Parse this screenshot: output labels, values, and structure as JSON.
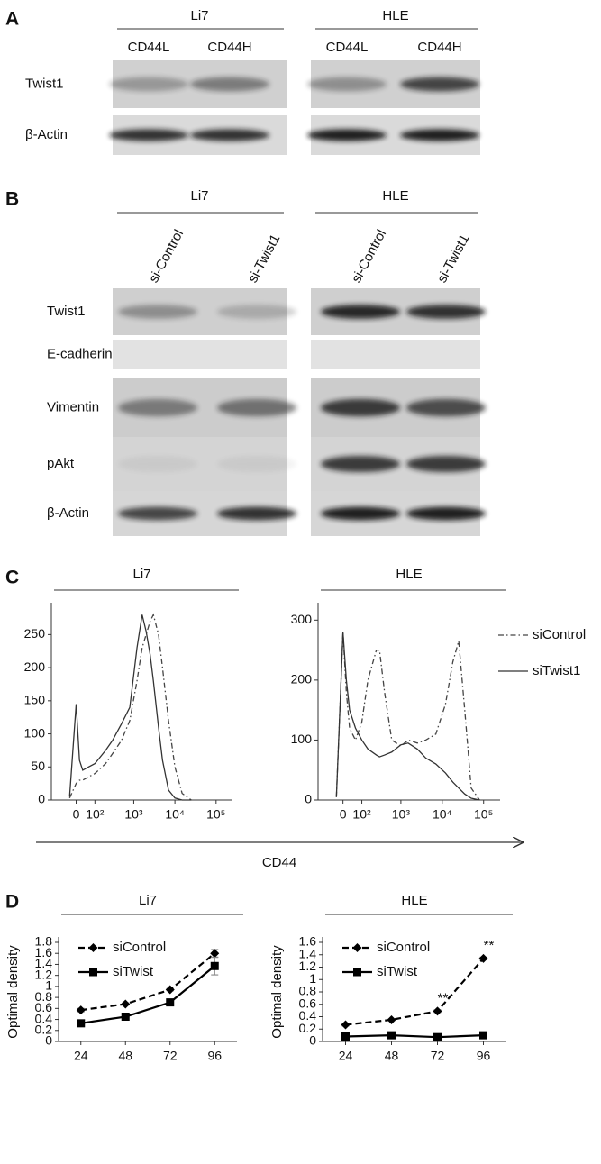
{
  "panel_a": {
    "label": "A",
    "groups": [
      {
        "name": "Li7",
        "lanes": [
          "CD44L",
          "CD44H"
        ]
      },
      {
        "name": "HLE",
        "lanes": [
          "CD44L",
          "CD44H"
        ]
      }
    ],
    "rows": [
      "Twist1",
      "β-Actin"
    ]
  },
  "panel_b": {
    "label": "B",
    "groups": [
      {
        "name": "Li7",
        "lanes": [
          "si-Control",
          "si-Twist1"
        ]
      },
      {
        "name": "HLE",
        "lanes": [
          "si-Control",
          "si-Twist1"
        ]
      }
    ],
    "rows": [
      "Twist1",
      "E-cadherin",
      "Vimentin",
      "pAkt",
      "β-Actin"
    ]
  },
  "panel_c": {
    "label": "C",
    "xlabel": "CD44"
  },
  "panel_d": {
    "label": "D"
  },
  "chart_data": [
    {
      "type": "line",
      "title": "Li7",
      "xscale": "biexponential",
      "x": [
        -30,
        0,
        15,
        30,
        60,
        100,
        200,
        300,
        500,
        800,
        1200,
        1600,
        2000,
        2500,
        3000,
        4000,
        5000,
        7000,
        10000,
        15000,
        25000
      ],
      "series": [
        {
          "color": "#444444",
          "dash": "dashdot",
          "values": [
            3,
            25,
            30,
            30,
            35,
            40,
            55,
            70,
            90,
            120,
            180,
            230,
            250,
            270,
            280,
            250,
            200,
            120,
            50,
            10,
            0
          ]
        },
        {
          "color": "#333333",
          "dash": "solid",
          "values": [
            5,
            145,
            60,
            45,
            50,
            55,
            75,
            90,
            115,
            140,
            230,
            280,
            255,
            220,
            180,
            110,
            60,
            15,
            3,
            0,
            0
          ]
        }
      ],
      "xlim": [
        -150,
        250000
      ],
      "xticks": [
        0,
        {
          "value": 100,
          "label": "10²"
        },
        {
          "value": 1000,
          "label": "10³"
        },
        {
          "value": 10000,
          "label": "10⁴"
        },
        {
          "value": 100000,
          "label": "10⁵"
        }
      ],
      "ylim": [
        0,
        290
      ],
      "yticks": [
        0,
        50,
        100,
        150,
        200,
        250
      ]
    },
    {
      "type": "line",
      "title": "HLE",
      "xscale": "biexponential",
      "legend": "outside right",
      "x": [
        -30,
        0,
        15,
        30,
        60,
        100,
        150,
        250,
        300,
        400,
        600,
        1000,
        1500,
        2500,
        4000,
        7000,
        12000,
        18000,
        25000,
        35000,
        50000,
        80000
      ],
      "series": [
        {
          "name": "siControl",
          "color": "#444444",
          "dash": "dashdot",
          "values": [
            5,
            280,
            180,
            120,
            100,
            130,
            200,
            250,
            250,
            180,
            100,
            90,
            100,
            95,
            100,
            110,
            160,
            230,
            265,
            150,
            20,
            0
          ]
        },
        {
          "name": "siTwist1",
          "color": "#333333",
          "dash": "solid",
          "values": [
            5,
            280,
            200,
            150,
            120,
            100,
            85,
            75,
            72,
            75,
            80,
            92,
            95,
            85,
            70,
            60,
            45,
            30,
            20,
            10,
            3,
            0
          ]
        }
      ],
      "xlim": [
        -150,
        250000
      ],
      "xticks": [
        0,
        {
          "value": 100,
          "label": "10²"
        },
        {
          "value": 1000,
          "label": "10³"
        },
        {
          "value": 10000,
          "label": "10⁴"
        },
        {
          "value": 100000,
          "label": "10⁵"
        }
      ],
      "ylim": [
        0,
        320
      ],
      "yticks": [
        0,
        100,
        200,
        300
      ]
    },
    {
      "type": "line",
      "title": "Li7",
      "ylabel": "Optimal density",
      "legend": "upper left",
      "x": [
        24,
        48,
        72,
        96
      ],
      "series": [
        {
          "name": "siControl",
          "color": "#000000",
          "dash": "dashed",
          "marker": "diamond",
          "values": [
            0.57,
            0.68,
            0.94,
            1.6
          ],
          "error": [
            0.03,
            0.02,
            0.02,
            0.07
          ]
        },
        {
          "name": "siTwist",
          "color": "#000000",
          "dash": "solid",
          "marker": "square",
          "values": [
            0.33,
            0.45,
            0.71,
            1.37
          ],
          "error": [
            0.02,
            0.05,
            0.04,
            0.16
          ]
        }
      ],
      "xlim": [
        12,
        108
      ],
      "xticks": [
        24,
        48,
        72,
        96
      ],
      "ylim": [
        0,
        1.8
      ],
      "yticks": [
        0,
        0.2,
        0.4,
        0.6,
        0.8,
        1,
        1.2,
        1.4,
        1.6,
        1.8
      ]
    },
    {
      "type": "line",
      "title": "HLE",
      "ylabel": "Optimal density",
      "legend": "upper left",
      "x": [
        24,
        48,
        72,
        96
      ],
      "series": [
        {
          "name": "siControl",
          "color": "#000000",
          "dash": "dashed",
          "marker": "diamond",
          "values": [
            0.27,
            0.35,
            0.49,
            1.34
          ],
          "error": [
            0.02,
            0.01,
            0.02,
            0.02
          ]
        },
        {
          "name": "siTwist",
          "color": "#000000",
          "dash": "solid",
          "marker": "square",
          "values": [
            0.08,
            0.1,
            0.07,
            0.1
          ],
          "error": [
            0.01,
            0.01,
            0.01,
            0.01
          ]
        }
      ],
      "annotations": [
        {
          "text": "**",
          "x": 72
        },
        {
          "text": "**",
          "x": 96
        }
      ],
      "xlim": [
        12,
        108
      ],
      "xticks": [
        24,
        48,
        72,
        96
      ],
      "ylim": [
        0,
        1.6
      ],
      "yticks": [
        0,
        0.2,
        0.4,
        0.6,
        0.8,
        1,
        1.2,
        1.4,
        1.6
      ]
    }
  ]
}
